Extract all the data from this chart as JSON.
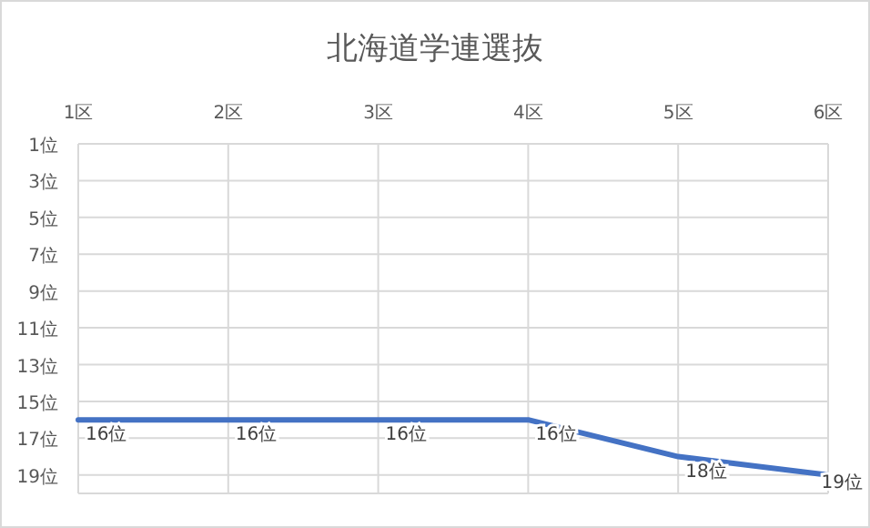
{
  "chart_data": {
    "type": "line",
    "title": "北海道学連選抜",
    "categories": [
      "1区",
      "2区",
      "3区",
      "4区",
      "5区",
      "6区"
    ],
    "series": [
      {
        "color": "#4472c4",
        "values": [
          16,
          16,
          16,
          16,
          18,
          19
        ],
        "value_labels": [
          "16位",
          "16位",
          "16位",
          "16位",
          "18位",
          "19位"
        ]
      }
    ],
    "ylim": [
      20,
      1
    ],
    "yticks": [
      {
        "value": 1,
        "label": "1位"
      },
      {
        "value": 3,
        "label": "3位"
      },
      {
        "value": 5,
        "label": "5位"
      },
      {
        "value": 7,
        "label": "7位"
      },
      {
        "value": 9,
        "label": "9位"
      },
      {
        "value": 11,
        "label": "11位"
      },
      {
        "value": 13,
        "label": "13位"
      },
      {
        "value": 15,
        "label": "15位"
      },
      {
        "value": 17,
        "label": "17位"
      },
      {
        "value": 19,
        "label": "19位"
      }
    ],
    "grid": true,
    "marker": "none",
    "line_style": "solid"
  }
}
